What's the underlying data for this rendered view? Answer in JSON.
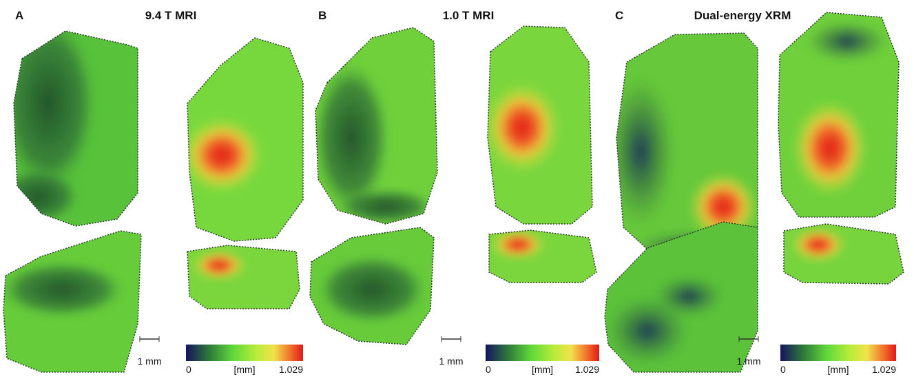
{
  "panels": [
    {
      "letter": "A",
      "title": "9.4 T MRI",
      "scale_bar": "1 mm",
      "colorbar": {
        "min": 0,
        "unit": "[mm]",
        "max": 1.029
      }
    },
    {
      "letter": "B",
      "title": "1.0 T MRI",
      "scale_bar": "1 mm",
      "colorbar": {
        "min": 0,
        "unit": "[mm]",
        "max": 1.029
      }
    },
    {
      "letter": "C",
      "title": "Dual-energy XRM",
      "scale_bar": "1 mm",
      "colorbar": {
        "min": 0,
        "unit": "[mm]",
        "max": 1.029
      }
    }
  ]
}
